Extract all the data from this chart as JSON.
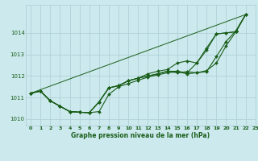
{
  "xlabel": "Graphe pression niveau de la mer (hPa)",
  "xlim": [
    -0.5,
    23
  ],
  "ylim": [
    1009.7,
    1015.3
  ],
  "yticks": [
    1010,
    1011,
    1012,
    1013,
    1014
  ],
  "xticks": [
    0,
    1,
    2,
    3,
    4,
    5,
    6,
    7,
    8,
    9,
    10,
    11,
    12,
    13,
    14,
    15,
    16,
    17,
    18,
    19,
    20,
    21,
    22,
    23
  ],
  "bg_color": "#cce9ed",
  "line_color": "#1a5e1a",
  "grid_color": "#aacdd4",
  "series_x": [
    [
      0,
      1,
      2,
      3,
      4,
      5,
      6,
      7,
      8,
      9,
      10,
      11,
      12,
      13,
      14,
      15,
      16,
      17,
      18,
      19,
      20,
      21,
      22
    ],
    [
      0,
      1,
      2,
      3,
      4,
      5,
      6,
      7,
      8,
      9,
      10,
      11,
      12,
      13,
      14,
      15,
      16,
      17,
      18,
      19,
      20,
      21,
      22
    ],
    [
      0,
      1,
      2,
      3,
      4,
      5,
      6,
      7,
      8,
      9,
      10,
      11,
      12,
      13,
      14,
      15,
      16,
      17,
      18,
      19,
      20,
      21,
      22
    ],
    [
      0,
      1,
      2,
      3,
      4,
      5,
      6,
      7,
      8,
      9,
      10,
      11,
      12,
      13,
      14,
      15,
      16,
      17,
      18,
      19,
      20,
      21,
      22
    ]
  ],
  "series_y": [
    [
      1011.2,
      1011.3,
      1010.85,
      1010.6,
      1010.35,
      1010.32,
      1010.3,
      1010.35,
      1011.15,
      1011.5,
      1011.65,
      1011.8,
      1011.95,
      1012.05,
      1012.15,
      1012.2,
      1012.1,
      1012.15,
      1012.2,
      1012.9,
      1013.6,
      1014.1,
      1014.85
    ],
    [
      1011.2,
      1011.3,
      1010.85,
      1010.6,
      1010.35,
      1010.32,
      1010.3,
      1010.8,
      1011.45,
      1011.55,
      1011.78,
      1011.9,
      1012.0,
      1012.1,
      1012.22,
      1012.15,
      1012.2,
      1012.15,
      1012.25,
      1012.6,
      1013.4,
      1014.05,
      1014.85
    ],
    [
      1011.2,
      1011.3,
      1010.85,
      1010.6,
      1010.35,
      1010.32,
      1010.3,
      1010.8,
      1011.45,
      1011.55,
      1011.78,
      1011.9,
      1012.0,
      1012.1,
      1012.22,
      1012.22,
      1012.15,
      1012.6,
      1013.2,
      1013.95,
      1014.0,
      1014.05,
      1014.85
    ],
    [
      1011.2,
      1011.3,
      1010.85,
      1010.6,
      1010.35,
      1010.32,
      1010.3,
      1010.8,
      1011.45,
      1011.55,
      1011.78,
      1011.9,
      1012.1,
      1012.22,
      1012.3,
      1012.6,
      1012.7,
      1012.6,
      1013.3,
      1013.95,
      1014.0,
      1014.05,
      1014.85
    ]
  ],
  "straight_line": [
    [
      0,
      22
    ],
    [
      1011.2,
      1014.85
    ]
  ]
}
